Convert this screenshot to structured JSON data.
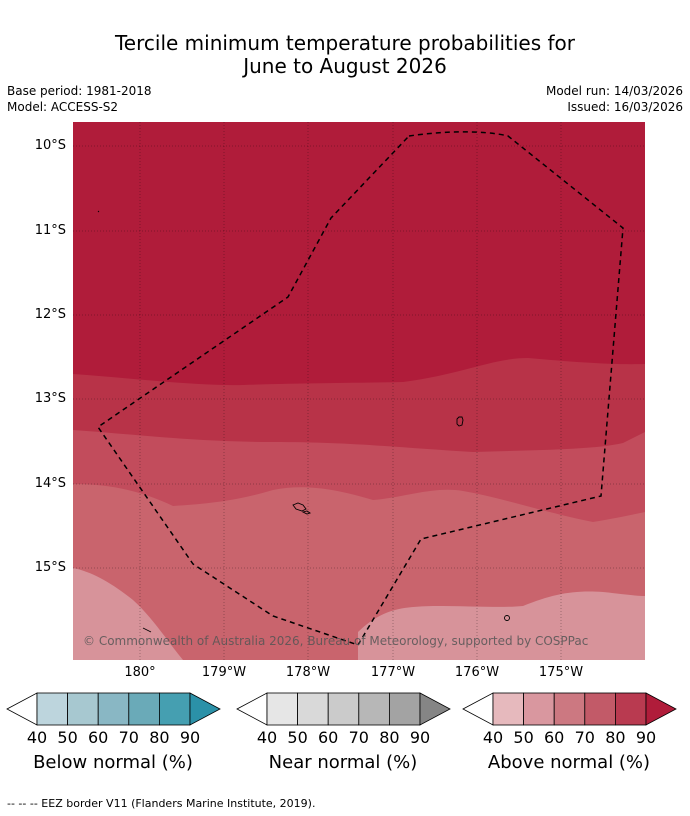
{
  "title": {
    "line1": "Tercile minimum temperature probabilities for",
    "line2": "June to August 2026"
  },
  "meta": {
    "base_period": "Base period: 1981-2018",
    "model": "Model: ACCESS-S2",
    "model_run": "Model run: 14/03/2026",
    "issued": "Issued: 16/03/2026"
  },
  "map": {
    "latitude_labels": [
      "10°S",
      "11°S",
      "12°S",
      "13°S",
      "14°S",
      "15°S"
    ],
    "longitude_labels": [
      "180°",
      "179°W",
      "178°W",
      "177°W",
      "176°W",
      "175°W"
    ],
    "copyright": "© Commonwealth of Australia 2026, Bureau of Meteorology, supported by COSPPac",
    "zone_colors": {
      "above_90": "#b01c3a",
      "above_80": "#b83348",
      "above_70": "#c24c5c",
      "above_60": "#c9646d",
      "above_50": "#d7939a",
      "above_40": "#e6b5ba"
    },
    "eez_color": "#000000"
  },
  "legends": [
    {
      "label": "Below normal (%)",
      "ticks": [
        "40",
        "50",
        "60",
        "70",
        "80",
        "90"
      ],
      "colors": [
        "#ffffff",
        "#bdd5dd",
        "#a7c8d0",
        "#89b7c4",
        "#6aaab8",
        "#459fb1",
        "#2b91a8"
      ]
    },
    {
      "label": "Near normal (%)",
      "ticks": [
        "40",
        "50",
        "60",
        "70",
        "80",
        "90"
      ],
      "colors": [
        "#ffffff",
        "#e6e6e6",
        "#d9d9d9",
        "#cbcbcb",
        "#b7b7b7",
        "#a3a3a3",
        "#858585"
      ]
    },
    {
      "label": "Above normal (%)",
      "ticks": [
        "40",
        "50",
        "60",
        "70",
        "80",
        "90"
      ],
      "colors": [
        "#ffffff",
        "#e6b9bd",
        "#d9979f",
        "#cc7881",
        "#c25a68",
        "#b93a50",
        "#b01c3a"
      ]
    }
  ],
  "footer": "--  --  -- EEZ border V11 (Flanders Marine Institute, 2019)."
}
